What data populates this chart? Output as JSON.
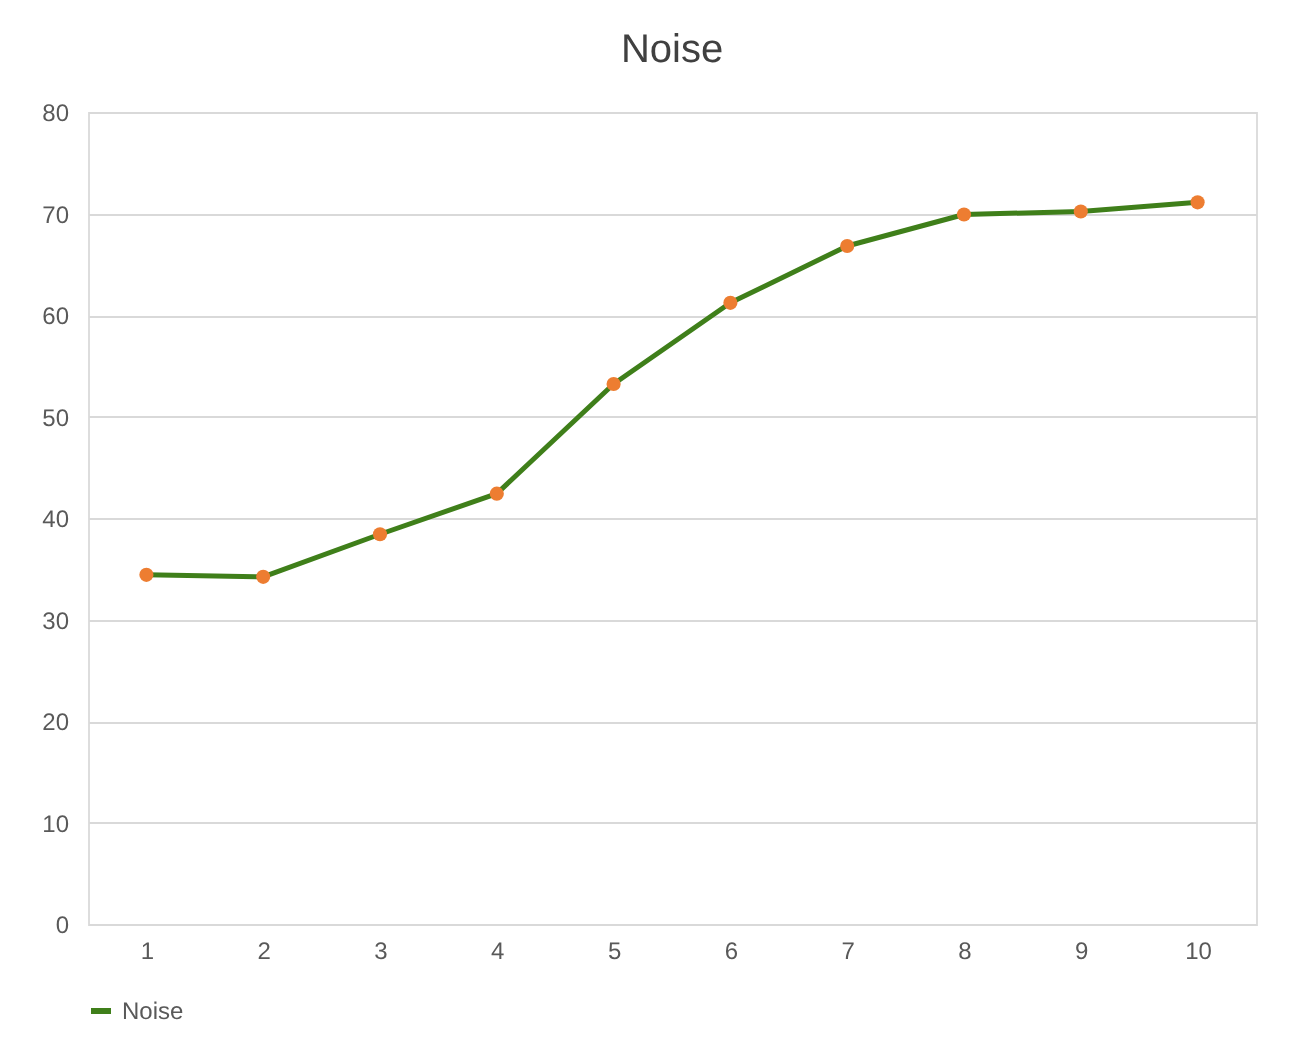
{
  "chart_data": {
    "type": "line",
    "title": "Noise",
    "categories": [
      "1",
      "2",
      "3",
      "4",
      "5",
      "6",
      "7",
      "8",
      "9",
      "10"
    ],
    "series": [
      {
        "name": "Noise",
        "color": "#3f7f1a",
        "colors": [
          "#ed7d31",
          "#ed7d31",
          "#ed7d31",
          "#ed7d31",
          "#ed7d31",
          "#ed7d31",
          "#ed7d31",
          "#ed7d31",
          "#ed7d31",
          "#ed7d31"
        ],
        "values": [
          34.4,
          34.2,
          38.4,
          42.4,
          53.2,
          61.2,
          66.8,
          69.9,
          70.2,
          71.1
        ]
      }
    ],
    "ylim": [
      0,
      80
    ],
    "yticks": [
      0,
      10,
      20,
      30,
      40,
      50,
      60,
      70,
      80
    ],
    "grid": "y",
    "legend": "bottom",
    "marker": "circle",
    "line_style": "solid"
  }
}
